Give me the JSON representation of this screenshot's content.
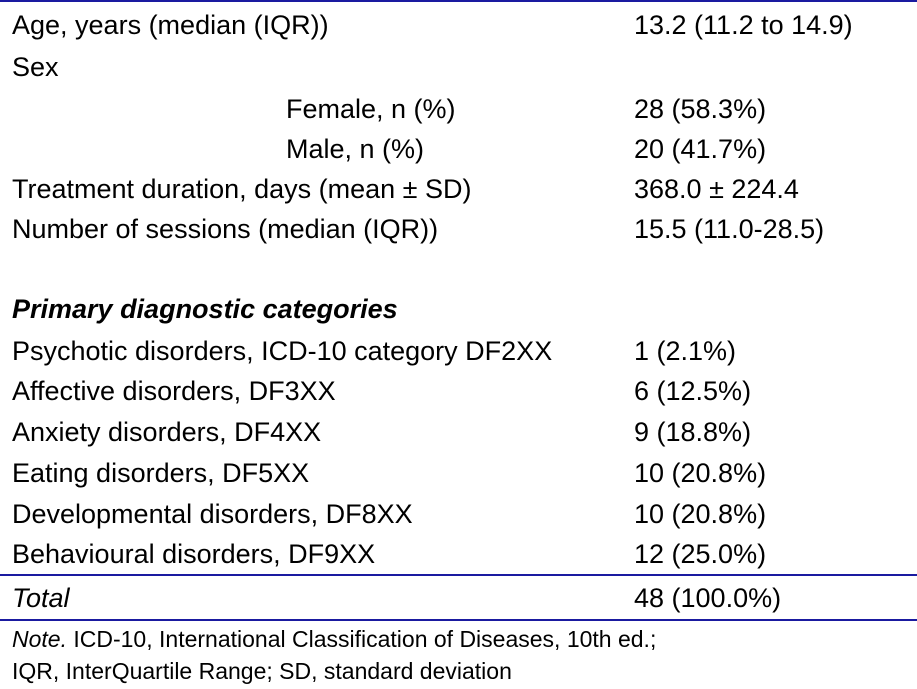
{
  "rows": [
    {
      "label": "Age, years (median (IQR))",
      "value": "13.2 (11.2 to 14.9)"
    },
    {
      "label": "Sex",
      "value": ""
    },
    {
      "label": "Female, n (%)",
      "value": "28 (58.3%)"
    },
    {
      "label": "Male, n (%)",
      "value": "20 (41.7%)"
    },
    {
      "label": "Treatment duration, days (mean ± SD)",
      "value": "368.0 ± 224.4"
    },
    {
      "label": "Number of sessions (median (IQR))",
      "value": "15.5 (11.0-28.5)"
    }
  ],
  "section_heading": "Primary diagnostic categories",
  "categories": [
    {
      "label": "Psychotic disorders, ICD-10 category DF2XX",
      "value": "1 (2.1%)"
    },
    {
      "label": "Affective disorders, DF3XX",
      "value": "6 (12.5%)"
    },
    {
      "label": "Anxiety disorders, DF4XX",
      "value": "9 (18.8%)"
    },
    {
      "label": "Eating disorders, DF5XX",
      "value": "10 (20.8%)"
    },
    {
      "label": "Developmental disorders, DF8XX",
      "value": "10 (20.8%)"
    },
    {
      "label": "Behavioural disorders, DF9XX",
      "value": "12 (25.0%)"
    }
  ],
  "total": {
    "label": "Total",
    "value": "48 (100.0%)"
  },
  "note": {
    "prefix": "Note.",
    "line1": " ICD-10, International Classification of Diseases, 10th ed.;",
    "line2": "IQR, InterQuartile Range; SD, standard deviation"
  },
  "colors": {
    "rule": "#1a1aa0",
    "text": "#000000"
  }
}
